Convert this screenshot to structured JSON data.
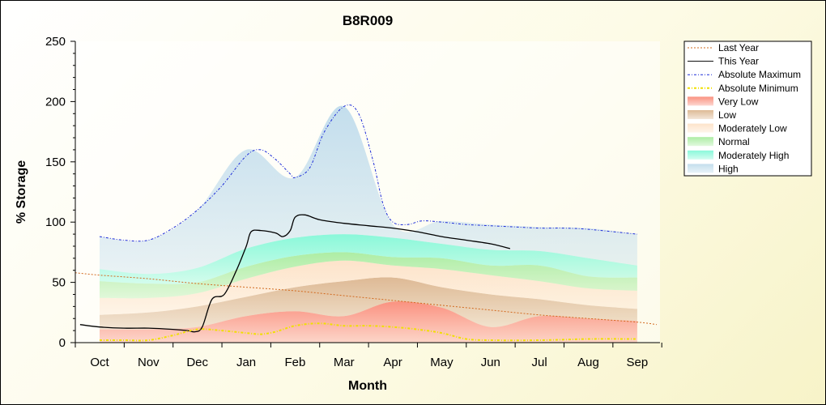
{
  "chart_data": {
    "type": "area",
    "title": "B8R009",
    "xlabel": "Month",
    "ylabel": "% Storage",
    "ylim": [
      0,
      250
    ],
    "yticks": [
      0,
      50,
      100,
      150,
      200,
      250
    ],
    "categories": [
      "Oct",
      "Nov",
      "Dec",
      "Jan",
      "Feb",
      "Mar",
      "Apr",
      "May",
      "Jun",
      "Jul",
      "Aug",
      "Sep"
    ],
    "legend_position": "right",
    "grid": false,
    "bands": [
      {
        "name": "Very Low",
        "color": "#fa8c7a",
        "lower": [
          0,
          0,
          0,
          0,
          0,
          0,
          0,
          0,
          0,
          0,
          0,
          0
        ],
        "upper": [
          11,
          11,
          13,
          22,
          26,
          22,
          34,
          29,
          13,
          22,
          20,
          18
        ]
      },
      {
        "name": "Low",
        "color": "#dcb690",
        "lower": [
          11,
          11,
          13,
          22,
          26,
          22,
          34,
          29,
          13,
          22,
          20,
          18
        ],
        "upper": [
          23,
          25,
          30,
          38,
          46,
          51,
          54,
          46,
          40,
          36,
          31,
          28
        ]
      },
      {
        "name": "Moderately Low",
        "color": "#fde2c8",
        "lower": [
          23,
          25,
          30,
          38,
          46,
          51,
          54,
          46,
          40,
          36,
          31,
          28
        ],
        "upper": [
          37,
          37,
          41,
          53,
          63,
          68,
          64,
          61,
          56,
          51,
          45,
          43
        ]
      },
      {
        "name": "Normal",
        "color": "#a9eca0",
        "lower": [
          37,
          37,
          41,
          53,
          63,
          68,
          64,
          61,
          56,
          51,
          45,
          43
        ],
        "upper": [
          51,
          49,
          50,
          63,
          72,
          75,
          71,
          70,
          64,
          64,
          55,
          54
        ]
      },
      {
        "name": "Moderately High",
        "color": "#84f8d8",
        "lower": [
          51,
          49,
          50,
          63,
          72,
          75,
          71,
          70,
          64,
          64,
          55,
          54
        ],
        "upper": [
          61,
          57,
          62,
          78,
          87,
          90,
          87,
          82,
          77,
          76,
          70,
          64
        ]
      },
      {
        "name": "High",
        "color": "#c0dcec",
        "lower": [
          61,
          57,
          62,
          78,
          87,
          90,
          87,
          82,
          77,
          76,
          70,
          64
        ],
        "upper": [
          88,
          85,
          110,
          160,
          137,
          196,
          98,
          101,
          98,
          96,
          95,
          90
        ]
      }
    ],
    "series": [
      {
        "name": "Last Year",
        "color": "#d2691e",
        "style": "dotted",
        "x": [
          -0.5,
          0,
          1,
          2,
          3,
          4,
          5,
          6,
          7,
          8,
          9,
          10,
          11,
          11.4
        ],
        "values": [
          58,
          56,
          53,
          49,
          46,
          43,
          39,
          35,
          31,
          27,
          23,
          20,
          17,
          15
        ]
      },
      {
        "name": "This Year",
        "color": "#000000",
        "style": "solid",
        "x": [
          -0.4,
          0,
          0.5,
          1,
          1.5,
          1.8,
          1.95,
          2.1,
          2.3,
          2.55,
          2.8,
          3.0,
          3.1,
          3.3,
          3.6,
          3.75,
          3.9,
          4.0,
          4.2,
          4.5,
          5.0,
          5.5,
          6.0,
          6.5,
          7.0,
          7.5,
          8.0,
          8.4
        ],
        "values": [
          15,
          13,
          12,
          12,
          11,
          10,
          9,
          13,
          36,
          40,
          60,
          80,
          92,
          93,
          91,
          88,
          93,
          104,
          106,
          102,
          99,
          97,
          95,
          92,
          88,
          85,
          82,
          78
        ]
      },
      {
        "name": "Absolute Maximum",
        "color": "#1c2bd8",
        "style": "dashdot",
        "x": [
          0,
          0.5,
          1,
          1.5,
          2,
          2.5,
          3,
          3.3,
          3.6,
          3.9,
          4.0,
          4.3,
          4.6,
          5.0,
          5.3,
          5.6,
          5.8,
          6.0,
          6.3,
          6.6,
          7.0,
          7.5,
          8.0,
          8.5,
          9.0,
          9.5,
          10.0,
          11.0
        ],
        "values": [
          88,
          85,
          85,
          95,
          110,
          130,
          155,
          160,
          152,
          140,
          137,
          145,
          175,
          196,
          190,
          150,
          115,
          100,
          98,
          101,
          100,
          98,
          97,
          96,
          95,
          95,
          94,
          90
        ]
      },
      {
        "name": "Absolute Minimum",
        "color": "#f0e000",
        "style": "dashdot",
        "x": [
          0,
          0.5,
          1,
          1.5,
          2,
          2.5,
          3,
          3.3,
          3.6,
          4.0,
          4.5,
          5.0,
          5.5,
          6.0,
          6.5,
          7.0,
          7.5,
          8.0,
          9.0,
          10.0,
          11.0
        ],
        "values": [
          2,
          2,
          2,
          6,
          11,
          10,
          8,
          7,
          9,
          14,
          16,
          14,
          14,
          13,
          11,
          8,
          3,
          2,
          2,
          3,
          3
        ]
      }
    ]
  }
}
